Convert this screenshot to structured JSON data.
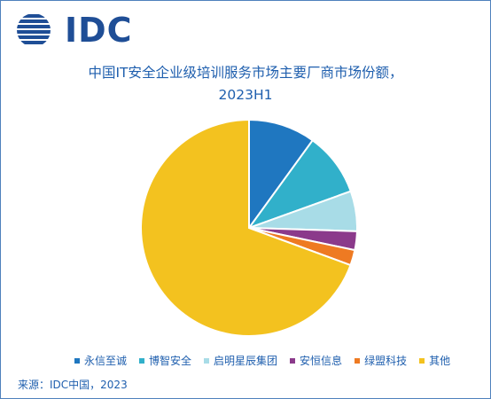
{
  "logo": {
    "text": "IDC",
    "color": "#1f4e96"
  },
  "chart_data": {
    "type": "pie",
    "title": "中国IT安全企业级培训服务市场主要厂商市场份额，",
    "subtitle": "2023H1",
    "categories": [
      "永信至诚",
      "博智安全",
      "启明星辰集团",
      "安恒信息",
      "绿盟科技",
      "其他"
    ],
    "values": [
      10.0,
      9.5,
      6.0,
      2.8,
      2.3,
      69.4
    ],
    "colors": [
      "#1f77c0",
      "#31b0ca",
      "#a8dce7",
      "#8b3a8b",
      "#ee7a22",
      "#f3c21f"
    ],
    "legend_position": "bottom"
  },
  "source": "来源：IDC中国，2023"
}
